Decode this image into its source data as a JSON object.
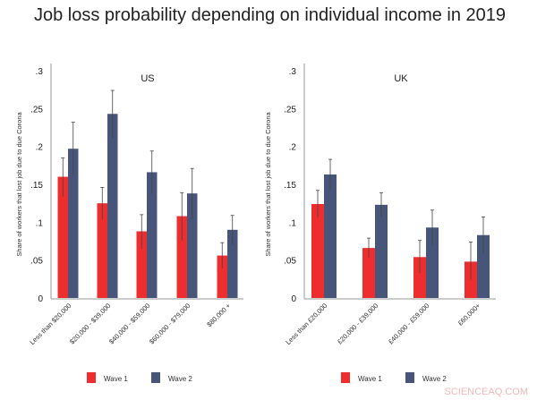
{
  "title": "Job loss probability depending on individual income in 2019",
  "watermark": "SCIENCEAQ.COM",
  "colors": {
    "wave1": "#ee2e2e",
    "wave2": "#48557a",
    "error": "#444444"
  },
  "chart_data": [
    {
      "type": "bar",
      "title": "US",
      "ylabel": "Share of workers that lost job due to due Corona",
      "ylim": [
        0,
        0.3
      ],
      "yticks": [
        ".3",
        ".25",
        ".2",
        ".15",
        ".1",
        ".05",
        "0"
      ],
      "ytick_values": [
        0.3,
        0.25,
        0.2,
        0.15,
        0.1,
        0.05,
        0
      ],
      "categories": [
        "Less than $20,000",
        "$20,000 - $39,000",
        "$40,000 - $59,000",
        "$60,000 - $79,000",
        "$80,000 +"
      ],
      "series": [
        {
          "name": "Wave 1",
          "values": [
            0.16,
            0.125,
            0.088,
            0.108,
            0.056
          ],
          "ci_low": [
            0.134,
            0.104,
            0.065,
            0.076,
            0.039
          ],
          "ci_high": [
            0.185,
            0.146,
            0.11,
            0.139,
            0.073
          ]
        },
        {
          "name": "Wave 2",
          "values": [
            0.197,
            0.243,
            0.166,
            0.138,
            0.09
          ],
          "ci_low": [
            0.162,
            0.211,
            0.137,
            0.104,
            0.07
          ],
          "ci_high": [
            0.232,
            0.274,
            0.194,
            0.171,
            0.109
          ]
        }
      ],
      "legend": "bottom"
    },
    {
      "type": "bar",
      "title": "UK",
      "ylabel": "Share of workers that lost job due to due Corona",
      "ylim": [
        0,
        0.3
      ],
      "yticks": [
        ".3",
        ".25",
        ".2",
        ".15",
        ".1",
        ".05",
        "0"
      ],
      "ytick_values": [
        0.3,
        0.25,
        0.2,
        0.15,
        0.1,
        0.05,
        0
      ],
      "categories": [
        "Less than £20,000",
        "£20,000 - £39,000",
        "£40,000 - £59,000",
        "£60,000+"
      ],
      "series": [
        {
          "name": "Wave 1",
          "values": [
            0.124,
            0.066,
            0.054,
            0.048
          ],
          "ci_low": [
            0.106,
            0.053,
            0.033,
            0.024
          ],
          "ci_high": [
            0.142,
            0.079,
            0.076,
            0.074
          ]
        },
        {
          "name": "Wave 2",
          "values": [
            0.163,
            0.123,
            0.093,
            0.083
          ],
          "ci_low": [
            0.143,
            0.107,
            0.07,
            0.058
          ],
          "ci_high": [
            0.183,
            0.139,
            0.116,
            0.107
          ]
        }
      ],
      "legend": "bottom"
    }
  ]
}
